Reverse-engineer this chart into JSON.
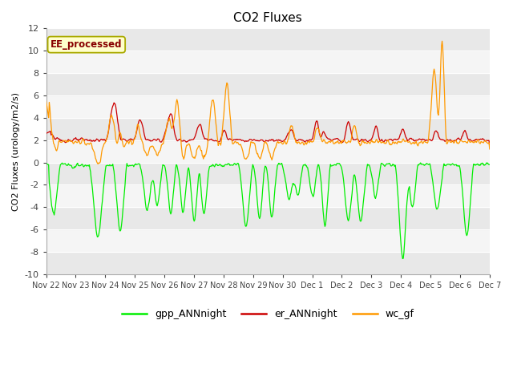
{
  "title": "CO2 Fluxes",
  "ylabel": "CO2 Fluxes (urology/m2/s)",
  "ylim": [
    -10,
    12
  ],
  "yticks": [
    -10,
    -8,
    -6,
    -4,
    -2,
    0,
    2,
    4,
    6,
    8,
    10,
    12
  ],
  "xlabel_dates": [
    "Nov 22",
    "Nov 23",
    "Nov 24",
    "Nov 25",
    "Nov 26",
    "Nov 27",
    "Nov 28",
    "Nov 29",
    "Nov 30",
    "Dec 1",
    "Dec 2",
    "Dec 3",
    "Dec 4",
    "Dec 5",
    "Dec 6",
    "Dec 7"
  ],
  "bg_color": "#ffffff",
  "plot_bg_dark": "#e8e8e8",
  "plot_bg_light": "#f5f5f5",
  "line_gpp": "#00ee00",
  "line_er": "#cc0000",
  "line_wc": "#ff9900",
  "legend_label_gpp": "gpp_ANNnight",
  "legend_label_er": "er_ANNnight",
  "legend_label_wc": "wc_gf",
  "ee_label": "EE_processed",
  "title_fontsize": 11,
  "axis_fontsize": 8,
  "legend_fontsize": 9
}
